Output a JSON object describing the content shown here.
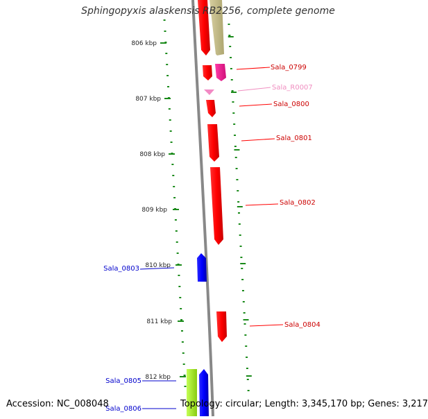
{
  "header": {
    "title": "Sphingopyxis alaskensis RB2256, complete genome"
  },
  "footer": {
    "accession": "Accession: NC_008048",
    "summary": "Topology: circular; Length: 3,345,170 bp; Genes: 3,217"
  },
  "ruler": {
    "labels": [
      "806 kbp",
      "807 kbp",
      "808 kbp",
      "809 kbp",
      "810 kbp",
      "811 kbp",
      "812 kbp"
    ]
  },
  "colors": {
    "forward_gene": "#ff0000",
    "reverse_gene": "#0000ff",
    "rna_gene": "#ee1c8e",
    "rna_label": "#f08ec0",
    "tick": "#1a8a1a",
    "backbone": "#888888",
    "khaki_feature": "#c8c090",
    "lime_feature": "#aaee33"
  },
  "genes": [
    {
      "label": "Sala_0799",
      "strand": "forward",
      "type": "CDS"
    },
    {
      "label": "Sala_R0007",
      "strand": "forward",
      "type": "RNA"
    },
    {
      "label": "Sala_0800",
      "strand": "forward",
      "type": "CDS"
    },
    {
      "label": "Sala_0801",
      "strand": "forward",
      "type": "CDS"
    },
    {
      "label": "Sala_0802",
      "strand": "forward",
      "type": "CDS"
    },
    {
      "label": "Sala_0803",
      "strand": "reverse",
      "type": "CDS"
    },
    {
      "label": "Sala_0804",
      "strand": "forward",
      "type": "CDS"
    },
    {
      "label": "Sala_0805",
      "strand": "reverse",
      "type": "CDS"
    },
    {
      "label": "Sala_0806",
      "strand": "reverse",
      "type": "CDS"
    }
  ]
}
